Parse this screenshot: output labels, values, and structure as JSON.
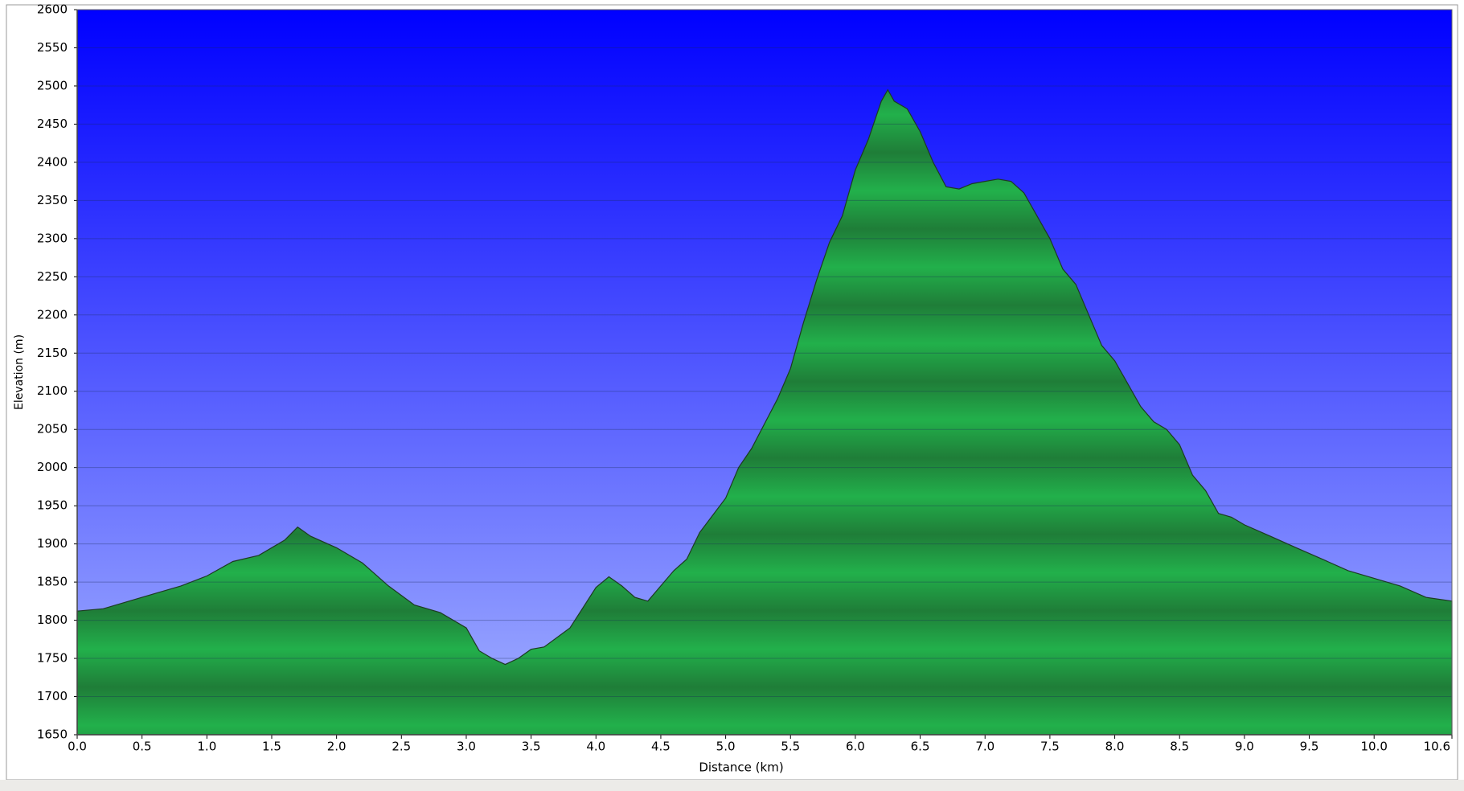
{
  "chart_data": {
    "type": "area",
    "x_label": "Distance  (km)",
    "y_label": "Elevation (m)",
    "color": "#1fa845",
    "line_color": "#1d3b22",
    "grid": true,
    "xlim": [
      0,
      10.6
    ],
    "ylim": [
      1650,
      2600
    ],
    "xticks": [
      {
        "value": 0,
        "label": "0.0"
      },
      0.5,
      {
        "value": 1,
        "label": "1.0"
      },
      1.5,
      {
        "value": 2,
        "label": "2.0"
      },
      2.5,
      {
        "value": 3,
        "label": "3.0"
      },
      3.5,
      {
        "value": 4,
        "label": "4.0"
      },
      4.5,
      {
        "value": 5,
        "label": "5.0"
      },
      5.5,
      {
        "value": 6,
        "label": "6.0"
      },
      6.5,
      {
        "value": 7,
        "label": "7.0"
      },
      7.5,
      {
        "value": 8,
        "label": "8.0"
      },
      8.5,
      {
        "value": 9,
        "label": "9.0"
      },
      9.5,
      {
        "value": 10,
        "label": "10.0"
      },
      10.6
    ],
    "yticks": [
      1650,
      1700,
      1750,
      1800,
      1850,
      1900,
      1950,
      2000,
      2050,
      2100,
      2150,
      2200,
      2250,
      2300,
      2350,
      2400,
      2450,
      2500,
      2550,
      2600
    ],
    "x": [
      0,
      0.2,
      0.4,
      0.6,
      0.8,
      1.0,
      1.2,
      1.4,
      1.6,
      1.7,
      1.8,
      2.0,
      2.2,
      2.4,
      2.6,
      2.8,
      3.0,
      3.1,
      3.2,
      3.3,
      3.4,
      3.5,
      3.6,
      3.8,
      4.0,
      4.1,
      4.2,
      4.3,
      4.4,
      4.5,
      4.6,
      4.7,
      4.8,
      5.0,
      5.1,
      5.2,
      5.4,
      5.5,
      5.6,
      5.7,
      5.8,
      5.9,
      6.0,
      6.1,
      6.2,
      6.25,
      6.3,
      6.4,
      6.5,
      6.6,
      6.7,
      6.8,
      6.9,
      7.0,
      7.1,
      7.2,
      7.3,
      7.4,
      7.5,
      7.6,
      7.7,
      7.8,
      7.9,
      8.0,
      8.1,
      8.2,
      8.3,
      8.4,
      8.5,
      8.6,
      8.7,
      8.8,
      8.9,
      9.0,
      9.2,
      9.4,
      9.6,
      9.8,
      10.0,
      10.2,
      10.4,
      10.6
    ],
    "values": [
      1812,
      1815,
      1825,
      1835,
      1845,
      1858,
      1877,
      1885,
      1905,
      1922,
      1910,
      1895,
      1875,
      1845,
      1820,
      1810,
      1790,
      1760,
      1750,
      1742,
      1750,
      1762,
      1765,
      1790,
      1843,
      1857,
      1845,
      1830,
      1825,
      1845,
      1865,
      1880,
      1915,
      1960,
      2000,
      2025,
      2090,
      2130,
      2190,
      2245,
      2295,
      2330,
      2390,
      2430,
      2480,
      2495,
      2480,
      2470,
      2440,
      2400,
      2368,
      2365,
      2372,
      2375,
      2378,
      2375,
      2360,
      2330,
      2300,
      2260,
      2240,
      2200,
      2160,
      2140,
      2110,
      2080,
      2060,
      2050,
      2030,
      1990,
      1970,
      1940,
      1935,
      1925,
      1910,
      1895,
      1880,
      1865,
      1855,
      1845,
      1830,
      1825
    ]
  }
}
